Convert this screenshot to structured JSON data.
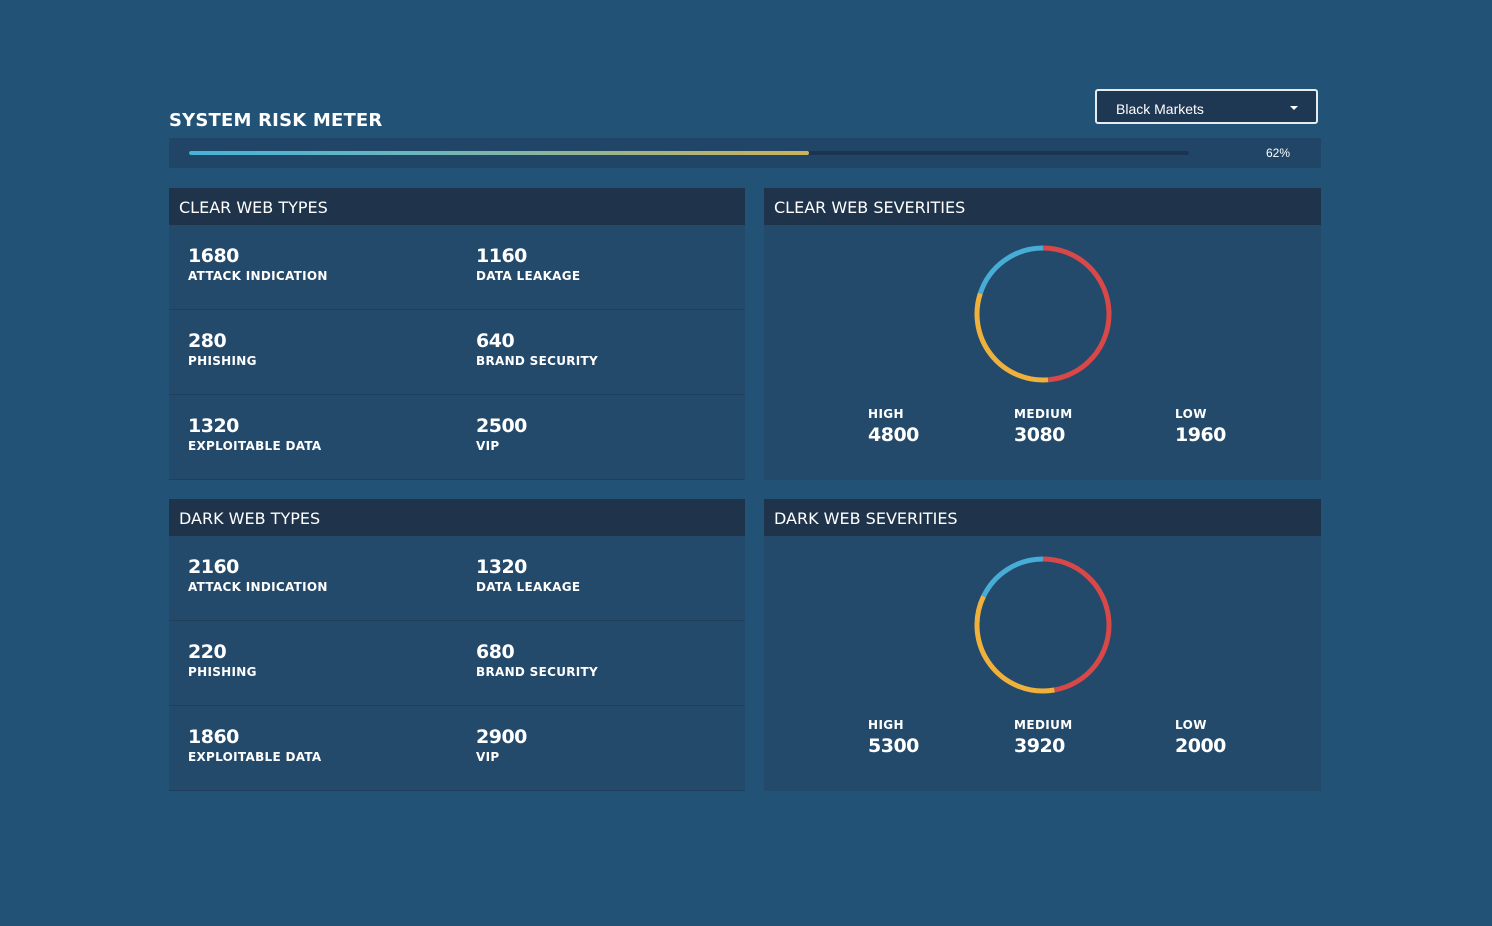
{
  "risk_meter": {
    "title": "SYSTEM RISK METER",
    "percent": 62,
    "percent_label": "62%"
  },
  "filter": {
    "selected": "Black Markets"
  },
  "clear_web_types": {
    "title": "CLEAR WEB TYPES",
    "items": [
      {
        "value": "1680",
        "label": "ATTACK INDICATION"
      },
      {
        "value": "1160",
        "label": "DATA LEAKAGE"
      },
      {
        "value": "280",
        "label": "PHISHING"
      },
      {
        "value": "640",
        "label": "BRAND SECURITY"
      },
      {
        "value": "1320",
        "label": "EXPLOITABLE DATA"
      },
      {
        "value": "2500",
        "label": "VIP"
      }
    ]
  },
  "clear_web_severities": {
    "title": "CLEAR WEB SEVERITIES",
    "items": [
      {
        "label": "HIGH",
        "value": "4800",
        "color": "#d94848"
      },
      {
        "label": "MEDIUM",
        "value": "3080",
        "color": "#efb13b"
      },
      {
        "label": "LOW",
        "value": "1960",
        "color": "#47acd6"
      }
    ]
  },
  "dark_web_types": {
    "title": "DARK WEB TYPES",
    "items": [
      {
        "value": "2160",
        "label": "ATTACK INDICATION"
      },
      {
        "value": "1320",
        "label": "DATA LEAKAGE"
      },
      {
        "value": "220",
        "label": "PHISHING"
      },
      {
        "value": "680",
        "label": "BRAND SECURITY"
      },
      {
        "value": "1860",
        "label": "EXPLOITABLE DATA"
      },
      {
        "value": "2900",
        "label": "VIP"
      }
    ]
  },
  "dark_web_severities": {
    "title": "DARK WEB SEVERITIES",
    "items": [
      {
        "label": "HIGH",
        "value": "5300",
        "color": "#d94848"
      },
      {
        "label": "MEDIUM",
        "value": "3920",
        "color": "#efb13b"
      },
      {
        "label": "LOW",
        "value": "2000",
        "color": "#47acd6"
      }
    ]
  },
  "colors": {
    "background": "#235277",
    "panel": "#234a6b",
    "panel_header": "#1f344b",
    "high": "#d94848",
    "medium": "#efb13b",
    "low": "#47acd6"
  }
}
